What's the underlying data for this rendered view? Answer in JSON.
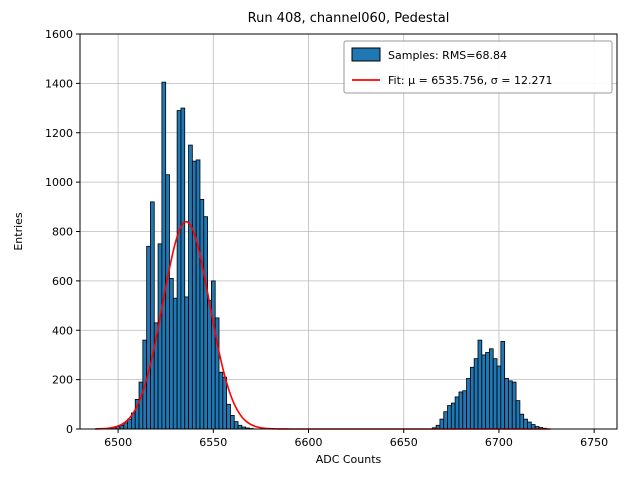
{
  "figure": {
    "background": "#ffffff"
  },
  "chart_data": {
    "type": "bar",
    "title": "Run 408, channel060, Pedestal",
    "xlabel": "ADC Counts",
    "ylabel": "Entries",
    "xlim": [
      6480,
      6762
    ],
    "ylim": [
      0,
      1600
    ],
    "xticks": [
      6500,
      6550,
      6600,
      6650,
      6700,
      6750
    ],
    "yticks": [
      0,
      200,
      400,
      600,
      800,
      1000,
      1200,
      1400,
      1600
    ],
    "grid": true,
    "grid_color": "#bbbbbb",
    "bar_color": "#1f77b4",
    "bar_edge_color": "#000000",
    "bin_width": 2,
    "bins": [
      [
        6494,
        2
      ],
      [
        6496,
        4
      ],
      [
        6498,
        6
      ],
      [
        6500,
        10
      ],
      [
        6502,
        15
      ],
      [
        6504,
        25
      ],
      [
        6506,
        40
      ],
      [
        6508,
        65
      ],
      [
        6510,
        120
      ],
      [
        6512,
        190
      ],
      [
        6514,
        360
      ],
      [
        6516,
        740
      ],
      [
        6518,
        920
      ],
      [
        6520,
        430
      ],
      [
        6522,
        750
      ],
      [
        6524,
        1405
      ],
      [
        6526,
        1030
      ],
      [
        6528,
        610
      ],
      [
        6530,
        530
      ],
      [
        6532,
        1290
      ],
      [
        6534,
        1300
      ],
      [
        6536,
        535
      ],
      [
        6538,
        1150
      ],
      [
        6540,
        1085
      ],
      [
        6542,
        1090
      ],
      [
        6544,
        930
      ],
      [
        6546,
        860
      ],
      [
        6548,
        520
      ],
      [
        6550,
        600
      ],
      [
        6552,
        450
      ],
      [
        6554,
        230
      ],
      [
        6556,
        210
      ],
      [
        6558,
        100
      ],
      [
        6560,
        55
      ],
      [
        6562,
        30
      ],
      [
        6564,
        15
      ],
      [
        6566,
        8
      ],
      [
        6568,
        4
      ],
      [
        6570,
        2
      ],
      [
        6666,
        5
      ],
      [
        6668,
        15
      ],
      [
        6670,
        40
      ],
      [
        6672,
        70
      ],
      [
        6674,
        95
      ],
      [
        6676,
        105
      ],
      [
        6678,
        130
      ],
      [
        6680,
        150
      ],
      [
        6682,
        155
      ],
      [
        6684,
        205
      ],
      [
        6686,
        250
      ],
      [
        6688,
        285
      ],
      [
        6690,
        360
      ],
      [
        6692,
        300
      ],
      [
        6694,
        310
      ],
      [
        6696,
        325
      ],
      [
        6698,
        285
      ],
      [
        6700,
        255
      ],
      [
        6702,
        355
      ],
      [
        6704,
        205
      ],
      [
        6706,
        195
      ],
      [
        6708,
        190
      ],
      [
        6710,
        115
      ],
      [
        6712,
        60
      ],
      [
        6714,
        40
      ],
      [
        6716,
        28
      ],
      [
        6718,
        18
      ],
      [
        6720,
        10
      ],
      [
        6722,
        6
      ],
      [
        6724,
        3
      ]
    ],
    "fit": {
      "mu": 6535.756,
      "sigma": 12.271,
      "amplitude": 840,
      "color": "#ff0000",
      "x_start": 6488,
      "x_end": 6727
    },
    "legend": {
      "position": "top-right",
      "entries": [
        {
          "type": "patch",
          "color": "#1f77b4",
          "edge": "#000000",
          "label": "Samples: RMS=68.84"
        },
        {
          "type": "line",
          "color": "#ff0000",
          "label": "Fit: μ = 6535.756, σ = 12.271"
        }
      ]
    }
  }
}
